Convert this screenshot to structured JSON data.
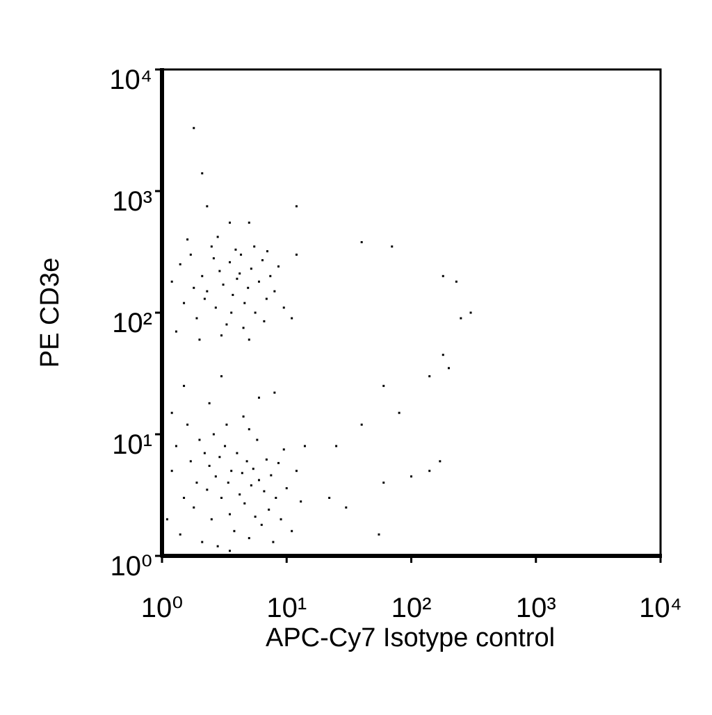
{
  "chart_data": {
    "type": "scatter",
    "x_label": "APC-Cy7 Isotype control",
    "y_label": "PE CD3e",
    "x_log": true,
    "y_log": true,
    "color": "#000000",
    "xlim": [
      1,
      10000
    ],
    "ylim": [
      1,
      10000
    ],
    "xticks": [
      {
        "value": 1,
        "label": "10⁰"
      },
      {
        "value": 10,
        "label": "10¹"
      },
      {
        "value": 100,
        "label": "10²"
      },
      {
        "value": 1000,
        "label": "10³"
      },
      {
        "value": 10000,
        "label": "10⁴"
      }
    ],
    "yticks": [
      {
        "value": 1,
        "label": "10⁰"
      },
      {
        "value": 10,
        "label": "10¹"
      },
      {
        "value": 100,
        "label": "10²"
      },
      {
        "value": 1000,
        "label": "10³"
      },
      {
        "value": 10000,
        "label": "10⁴"
      }
    ],
    "x": [
      1.2,
      1.4,
      1.5,
      1.7,
      1.9,
      2.1,
      2.3,
      2.5,
      2.7,
      2.9,
      3.1,
      3.3,
      3.5,
      3.7,
      4.0,
      4.3,
      4.6,
      4.9,
      5.2,
      5.6,
      6.0,
      6.4,
      6.9,
      7.4,
      8.0,
      8.6,
      1.3,
      2.0,
      3.0,
      4.5,
      1.6,
      2.8,
      5.5,
      7.0,
      9.5,
      11,
      12,
      3.6,
      2.2,
      4.2,
      5.0,
      1.8,
      6.6,
      3.9,
      2.6,
      1.1,
      1.2,
      1.3,
      1.4,
      1.5,
      1.6,
      1.7,
      1.8,
      1.9,
      2.0,
      2.1,
      2.2,
      2.3,
      2.4,
      2.5,
      2.6,
      2.7,
      2.8,
      2.9,
      3.0,
      3.2,
      3.4,
      3.5,
      3.6,
      3.8,
      4.0,
      4.2,
      4.4,
      4.6,
      4.8,
      5.0,
      5.2,
      5.4,
      5.6,
      5.8,
      6.0,
      6.3,
      6.6,
      6.9,
      7.2,
      7.5,
      7.8,
      8.2,
      8.6,
      9.0,
      9.5,
      10,
      11,
      12,
      13,
      14,
      3.3,
      4.5,
      2.4,
      6,
      1.5,
      3,
      8,
      1.2,
      5,
      3.5,
      1.8,
      2.1,
      2.3,
      12,
      3.5,
      5,
      70,
      40,
      180,
      230,
      300,
      250,
      180,
      200,
      140,
      60,
      170,
      140,
      100,
      60,
      55,
      30,
      22,
      25,
      40,
      80
    ],
    "values": [
      180,
      250,
      120,
      300,
      90,
      200,
      150,
      350,
      110,
      220,
      170,
      80,
      260,
      140,
      190,
      300,
      120,
      160,
      230,
      100,
      180,
      270,
      130,
      200,
      150,
      240,
      70,
      60,
      65,
      75,
      400,
      420,
      350,
      320,
      110,
      90,
      300,
      100,
      130,
      210,
      60,
      160,
      85,
      330,
      280,
      2,
      5,
      8,
      1.5,
      3,
      12,
      6,
      2.5,
      4,
      9,
      1.3,
      7,
      3.5,
      5.5,
      2,
      10,
      4.5,
      1.2,
      6.5,
      3,
      8,
      4,
      2.2,
      5,
      1.6,
      7,
      3.2,
      4.8,
      2.7,
      6,
      1.4,
      3.8,
      5.2,
      2.1,
      9,
      4.2,
      1.8,
      3.4,
      6.2,
      2.4,
      4.6,
      1.3,
      3,
      5.8,
      2,
      7.5,
      3.6,
      1.6,
      5,
      2.8,
      8,
      12,
      14,
      18,
      20,
      25,
      30,
      22,
      15,
      11,
      1.1,
      3300,
      1400,
      750,
      750,
      550,
      550,
      350,
      380,
      200,
      180,
      100,
      90,
      45,
      35,
      30,
      25,
      6,
      5,
      4.5,
      4,
      1.5,
      2.5,
      3,
      8,
      12,
      15
    ]
  }
}
